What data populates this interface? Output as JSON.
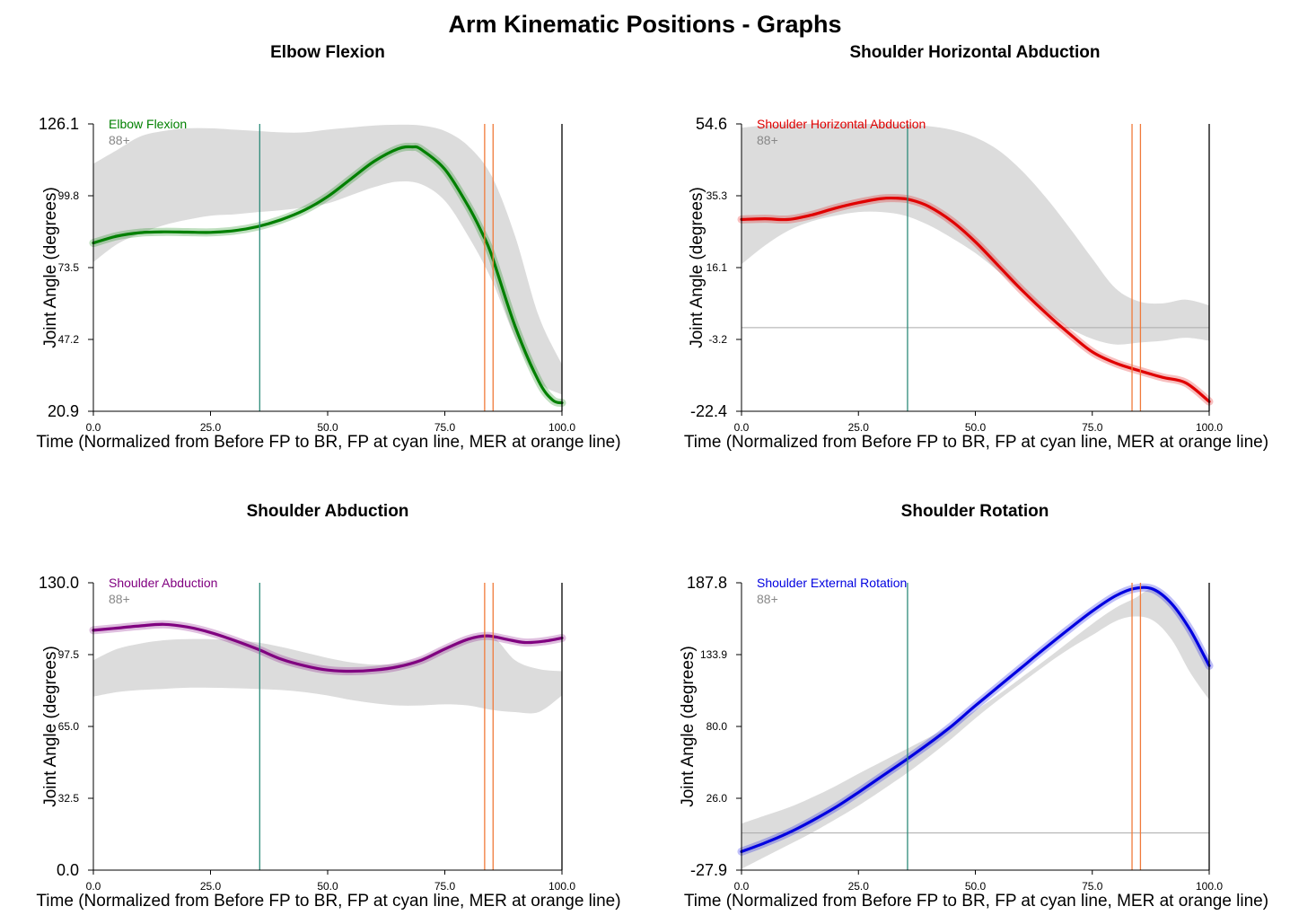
{
  "title": "Arm Kinematic Positions - Graphs",
  "colors": {
    "band": "#dcdcdc",
    "fp_line": "#2e8b7a",
    "mer_line": "#f07a3a",
    "end_line": "#000000",
    "zero_line": "#aaaaaa"
  },
  "chart_data": [
    {
      "type": "line",
      "title": "Elbow Flexion",
      "xlabel": "Time (Normalized from Before FP to BR, FP at cyan line, MER at orange line)",
      "ylabel": "Joint Angle (degrees)",
      "xlim": [
        0,
        100
      ],
      "ylim": [
        20.9,
        126.1
      ],
      "yticks": [
        "126.1",
        "99.8",
        "73.5",
        "47.2",
        "20.9"
      ],
      "xticks": [
        "0.0",
        "25.0",
        "50.0",
        "75.0",
        "100.0"
      ],
      "legend": [
        "Elbow Flexion",
        "88+"
      ],
      "legend_color": "#008000",
      "fp_x": 35.5,
      "mer_x": [
        83.5,
        85.3
      ],
      "zero_line": null,
      "series": [
        {
          "name": "Elbow Flexion",
          "color": "#008000",
          "x": [
            0,
            5,
            10,
            15,
            20,
            25,
            30,
            35,
            40,
            45,
            50,
            55,
            60,
            65,
            68,
            70,
            75,
            80,
            83,
            85,
            90,
            95,
            98,
            100
          ],
          "y": [
            82.5,
            85,
            86.3,
            86.6,
            86.5,
            86.4,
            87,
            88.5,
            91,
            94.5,
            99.5,
            106,
            112.5,
            117,
            117.7,
            116.7,
            109.5,
            96,
            86,
            78,
            52,
            32,
            25,
            24
          ]
        },
        {
          "name": "88+",
          "color": "#dcdcdc",
          "band": true,
          "x": [
            0,
            5,
            10,
            15,
            20,
            25,
            30,
            35,
            40,
            45,
            50,
            55,
            60,
            65,
            70,
            75,
            80,
            85,
            90,
            95,
            100
          ],
          "upper": [
            111.5,
            116.5,
            121.5,
            123.5,
            124.5,
            124.5,
            124,
            123.5,
            123,
            123,
            124,
            124.8,
            125.5,
            125.8,
            125.5,
            123.5,
            118,
            107,
            85,
            56,
            38
          ],
          "lower": [
            75.5,
            82,
            86,
            89,
            91,
            92.5,
            93,
            93.8,
            94.5,
            95.5,
            97,
            100,
            103,
            105,
            104,
            98,
            85,
            69,
            48,
            32,
            27
          ]
        }
      ]
    },
    {
      "type": "line",
      "title": "Shoulder Horizontal Abduction",
      "xlabel": "Time (Normalized from Before FP to BR, FP at cyan line, MER at orange line)",
      "ylabel": "Joint Angle (degrees)",
      "xlim": [
        0,
        100
      ],
      "ylim": [
        -22.4,
        54.6
      ],
      "yticks": [
        "54.6",
        "35.3",
        "16.1",
        "-3.2",
        "-22.4"
      ],
      "xticks": [
        "0.0",
        "25.0",
        "50.0",
        "75.0",
        "100.0"
      ],
      "legend": [
        "Shoulder Horizontal Abduction",
        "88+"
      ],
      "legend_color": "#e00000",
      "fp_x": 35.5,
      "mer_x": [
        83.5,
        85.3
      ],
      "zero_line": 0,
      "series": [
        {
          "name": "Shoulder Horizontal Abduction",
          "color": "#e00000",
          "x": [
            0,
            5,
            10,
            15,
            20,
            25,
            30,
            33,
            36,
            40,
            45,
            50,
            55,
            60,
            65,
            70,
            75,
            80,
            85,
            90,
            95,
            100
          ],
          "y": [
            29,
            29.2,
            29,
            30.2,
            32,
            33.5,
            34.6,
            34.7,
            34.3,
            32.5,
            28.5,
            23,
            16.5,
            10,
            4,
            -1.5,
            -6.5,
            -9.5,
            -11.5,
            -13.3,
            -14.8,
            -19.8
          ]
        },
        {
          "name": "88+",
          "color": "#dcdcdc",
          "band": true,
          "x": [
            0,
            5,
            10,
            15,
            20,
            25,
            30,
            35,
            40,
            45,
            50,
            55,
            60,
            65,
            70,
            75,
            80,
            85,
            90,
            95,
            100
          ],
          "upper": [
            53.6,
            54.2,
            54.5,
            54.6,
            54.6,
            54.6,
            54.6,
            54.4,
            54,
            53,
            51,
            47.5,
            42,
            35,
            27,
            18.5,
            10.5,
            7,
            6.5,
            7.5,
            6
          ]
        },
        {
          "name": "88+ lower",
          "color": "#dcdcdc",
          "band_lower_of": 1,
          "x": [
            0,
            5,
            10,
            15,
            20,
            25,
            30,
            35,
            40,
            45,
            50,
            55,
            60,
            65,
            70,
            75,
            80,
            85,
            90,
            95,
            100
          ],
          "lower": [
            17,
            22,
            26,
            28.5,
            30,
            31,
            31,
            30,
            27.5,
            24,
            20,
            15,
            9.5,
            4.5,
            0,
            -3,
            -4.5,
            -4,
            -3.5,
            -2.7,
            -3.5
          ]
        }
      ]
    },
    {
      "type": "line",
      "title": "Shoulder Abduction",
      "xlabel": "Time (Normalized from Before FP to BR, FP at cyan line, MER at orange line)",
      "ylabel": "Joint Angle (degrees)",
      "xlim": [
        0,
        100
      ],
      "ylim": [
        0,
        130
      ],
      "yticks": [
        "130.0",
        "97.5",
        "65.0",
        "32.5",
        "0.0"
      ],
      "xticks": [
        "0.0",
        "25.0",
        "50.0",
        "75.0",
        "100.0"
      ],
      "legend": [
        "Shoulder Abduction",
        "88+"
      ],
      "legend_color": "#800080",
      "fp_x": 35.5,
      "mer_x": [
        83.5,
        85.3
      ],
      "zero_line": null,
      "series": [
        {
          "name": "Shoulder Abduction",
          "color": "#800080",
          "x": [
            0,
            5,
            10,
            15,
            20,
            25,
            30,
            35,
            40,
            45,
            50,
            55,
            60,
            65,
            70,
            75,
            80,
            84,
            88,
            92,
            96,
            100
          ],
          "y": [
            108.5,
            109.5,
            110.5,
            111.2,
            110,
            107.5,
            104,
            100,
            95.5,
            92.5,
            90.5,
            90,
            90.5,
            92,
            95,
            100,
            104.5,
            106,
            104.5,
            103,
            103.5,
            105
          ]
        },
        {
          "name": "88+",
          "color": "#dcdcdc",
          "band": true,
          "x": [
            0,
            5,
            10,
            15,
            20,
            25,
            30,
            35,
            40,
            45,
            50,
            55,
            60,
            65,
            70,
            75,
            80,
            85,
            90,
            95,
            100
          ],
          "upper": [
            95,
            100,
            102.5,
            104,
            104.5,
            104.5,
            104,
            103,
            101,
            98.5,
            96,
            94,
            93,
            93.5,
            96,
            101,
            105,
            106,
            95,
            91,
            90
          ],
          "lower": [
            78.5,
            80.5,
            81.5,
            82,
            82.5,
            82.5,
            82.3,
            82,
            81.5,
            80.5,
            79,
            77,
            75.5,
            74.5,
            74.5,
            75,
            74.5,
            72.5,
            71.5,
            71.5,
            79
          ]
        }
      ]
    },
    {
      "type": "line",
      "title": "Shoulder Rotation",
      "xlabel": "Time (Normalized from Before FP to BR, FP at cyan line, MER at orange line)",
      "ylabel": "Joint Angle (degrees)",
      "xlim": [
        0,
        100
      ],
      "ylim": [
        -27.9,
        187.8
      ],
      "yticks": [
        "187.8",
        "133.9",
        "80.0",
        "26.0",
        "-27.9"
      ],
      "xticks": [
        "0.0",
        "25.0",
        "50.0",
        "75.0",
        "100.0"
      ],
      "legend": [
        "Shoulder External Rotation",
        "88+"
      ],
      "legend_color": "#0000e0",
      "fp_x": 35.5,
      "mer_x": [
        83.5,
        85.3
      ],
      "zero_line": 0,
      "series": [
        {
          "name": "Shoulder External Rotation",
          "color": "#0000e0",
          "x": [
            0,
            5,
            10,
            15,
            20,
            25,
            30,
            35,
            40,
            45,
            50,
            55,
            60,
            65,
            70,
            75,
            80,
            84,
            88,
            92,
            96,
            100
          ],
          "y": [
            -14,
            -7.5,
            0,
            9,
            19,
            30.5,
            42.5,
            54.5,
            67,
            80.5,
            95.5,
            110,
            124.5,
            139,
            153,
            166.5,
            178,
            183.5,
            183,
            172,
            152,
            125.5
          ]
        },
        {
          "name": "88+",
          "color": "#dcdcdc",
          "band": true,
          "x": [
            0,
            5,
            10,
            15,
            20,
            25,
            30,
            35,
            40,
            45,
            50,
            55,
            60,
            65,
            70,
            75,
            80,
            84,
            88,
            92,
            96,
            100
          ],
          "upper": [
            7,
            13,
            19,
            26.5,
            35,
            44.5,
            53.5,
            62.5,
            71.5,
            81,
            92,
            104,
            117,
            130,
            143.5,
            157,
            169,
            176,
            183,
            172,
            150,
            130
          ],
          "lower": [
            -27,
            -18,
            -9,
            0,
            10,
            20.5,
            32,
            44,
            57,
            71,
            86,
            100,
            113,
            126,
            138,
            148.5,
            159,
            162.5,
            159.5,
            145,
            120,
            100
          ]
        }
      ]
    }
  ]
}
